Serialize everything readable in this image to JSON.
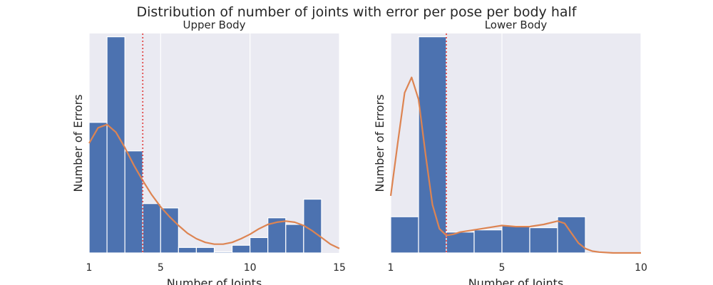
{
  "figure": {
    "title": "Distribution of number of joints with error per pose per body half",
    "colors": {
      "background": "#eaeaf2",
      "bar": "#4c72b0",
      "kde": "#dd8452",
      "mean_line": "#e24a4a",
      "grid": "#ffffff"
    }
  },
  "chart_data": [
    {
      "type": "bar",
      "title": "Upper Body",
      "xlabel": "Number of Joints",
      "ylabel": "Number of Errors",
      "xlim": [
        1,
        15
      ],
      "ylim": [
        0,
        1.0
      ],
      "xticks": [
        1,
        5,
        10,
        15
      ],
      "show_y_ticks": false,
      "grid": "vertical",
      "bin_edges": [
        1,
        2,
        3,
        4,
        5,
        6,
        7,
        8,
        9,
        10,
        11,
        12,
        13,
        14
      ],
      "values": [
        0.595,
        0.985,
        0.465,
        0.225,
        0.205,
        0.025,
        0.025,
        0.005,
        0.035,
        0.07,
        0.16,
        0.13,
        0.245
      ],
      "mean_line_x": 4.0,
      "kde": {
        "x": [
          1.0,
          1.5,
          2.0,
          2.5,
          3.0,
          3.5,
          4.0,
          4.5,
          5.0,
          5.5,
          6.0,
          6.5,
          7.0,
          7.5,
          8.0,
          8.5,
          9.0,
          9.5,
          10.0,
          10.5,
          11.0,
          11.5,
          12.0,
          12.5,
          13.0,
          13.5,
          14.0,
          14.5,
          15.0
        ],
        "y": [
          0.5,
          0.57,
          0.585,
          0.55,
          0.48,
          0.4,
          0.33,
          0.265,
          0.21,
          0.165,
          0.125,
          0.09,
          0.065,
          0.048,
          0.04,
          0.04,
          0.048,
          0.065,
          0.085,
          0.11,
          0.13,
          0.14,
          0.145,
          0.14,
          0.125,
          0.1,
          0.07,
          0.04,
          0.02
        ]
      }
    },
    {
      "type": "bar",
      "title": "Lower Body",
      "xlabel": "Number of Joints",
      "ylabel": "Number of Errors",
      "xlim": [
        1,
        10
      ],
      "ylim": [
        0,
        1.0
      ],
      "xticks": [
        1,
        5,
        10
      ],
      "show_y_ticks": false,
      "grid": "vertical",
      "bin_edges": [
        1,
        2,
        3,
        4,
        5,
        6,
        7,
        8
      ],
      "values": [
        0.165,
        0.985,
        0.095,
        0.105,
        0.125,
        0.115,
        0.165
      ],
      "mean_line_x": 3.0,
      "kde": {
        "x": [
          1.0,
          1.25,
          1.5,
          1.75,
          2.0,
          2.25,
          2.5,
          2.75,
          3.0,
          3.25,
          3.5,
          3.75,
          4.0,
          4.5,
          5.0,
          5.5,
          6.0,
          6.5,
          7.0,
          7.25,
          7.5,
          7.75,
          8.0,
          8.25,
          8.5,
          9.0,
          9.5,
          10.0
        ],
        "y": [
          0.26,
          0.5,
          0.73,
          0.8,
          0.7,
          0.45,
          0.22,
          0.11,
          0.08,
          0.085,
          0.095,
          0.1,
          0.105,
          0.115,
          0.125,
          0.12,
          0.12,
          0.13,
          0.145,
          0.135,
          0.09,
          0.045,
          0.02,
          0.008,
          0.004,
          0.0,
          0.0,
          0.0
        ]
      }
    }
  ]
}
